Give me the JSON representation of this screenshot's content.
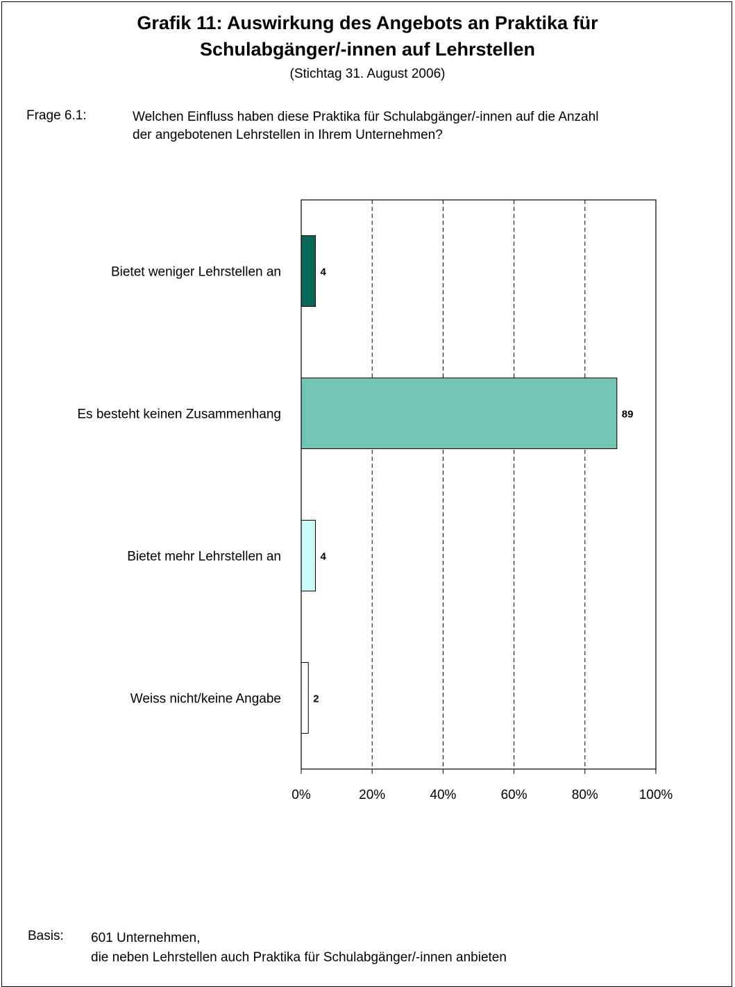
{
  "title_line1": "Grafik 11: Auswirkung des Angebots an Praktika für",
  "title_line2": "Schulabgänger/-innen auf Lehrstellen",
  "subtitle": "(Stichtag 31. August 2006)",
  "question": {
    "label": "Frage 6.1:",
    "line1": "Welchen Einfluss haben diese Praktika für Schulabgänger/-innen auf die Anzahl",
    "line2": "der angebotenen Lehrstellen in Ihrem Unternehmen?"
  },
  "chart_data": {
    "type": "bar",
    "orientation": "horizontal",
    "categories": [
      "Bietet weniger Lehrstellen an",
      "Es besteht keinen Zusammenhang",
      "Bietet mehr Lehrstellen an",
      "Weiss nicht/keine Angabe"
    ],
    "values": [
      4,
      89,
      4,
      2
    ],
    "data_labels": [
      "4",
      "89",
      "4",
      "2"
    ],
    "colors": [
      "#08665a",
      "#72c4b4",
      "#ccfbfb",
      "#ffffff"
    ],
    "xlim": [
      0,
      100
    ],
    "x_ticks": [
      "0%",
      "20%",
      "40%",
      "60%",
      "80%",
      "100%"
    ],
    "grid": "vertical-dashed"
  },
  "basis": {
    "label": "Basis:",
    "line1": "601 Unternehmen,",
    "line2": "die neben Lehrstellen auch Praktika für Schulabgänger/-innen anbieten"
  }
}
